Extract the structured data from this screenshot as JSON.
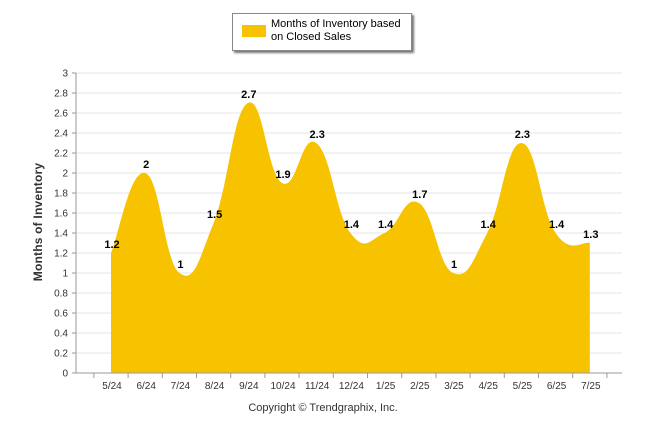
{
  "chart_data": {
    "type": "area",
    "categories": [
      "5/24",
      "6/24",
      "7/24",
      "8/24",
      "9/24",
      "10/24",
      "11/24",
      "12/24",
      "1/25",
      "2/25",
      "3/25",
      "4/25",
      "5/25",
      "6/25",
      "7/25"
    ],
    "series": [
      {
        "name": "Months of Inventory based on Closed Sales",
        "values": [
          1.2,
          2,
          1,
          1.5,
          2.7,
          1.9,
          2.3,
          1.4,
          1.4,
          1.7,
          1,
          1.4,
          2.3,
          1.4,
          1.3
        ]
      }
    ],
    "data_labels": [
      "1.2",
      "2",
      "1",
      "1.5",
      "2.7",
      "1.9",
      "2.3",
      "1.4",
      "1.4",
      "1.7",
      "1",
      "1.4",
      "2.3",
      "1.4",
      "1.3"
    ],
    "ylabel": "Months of Inventory",
    "xlabel": "",
    "ylim": [
      0,
      3
    ],
    "yticks": [
      "0",
      "0.2",
      "0.4",
      "0.6",
      "0.8",
      "1",
      "1.2",
      "1.4",
      "1.6",
      "1.8",
      "2",
      "2.2",
      "2.4",
      "2.6",
      "2.8",
      "3"
    ],
    "grid": true,
    "legend_position": "top-center",
    "colors": {
      "fill": "#F7C300",
      "grid": "#e6e6e6",
      "axis": "#999999"
    }
  },
  "legend": {
    "label": "Months of Inventory based on Closed Sales"
  },
  "footer": {
    "copyright": "Copyright © Trendgraphix, Inc."
  }
}
